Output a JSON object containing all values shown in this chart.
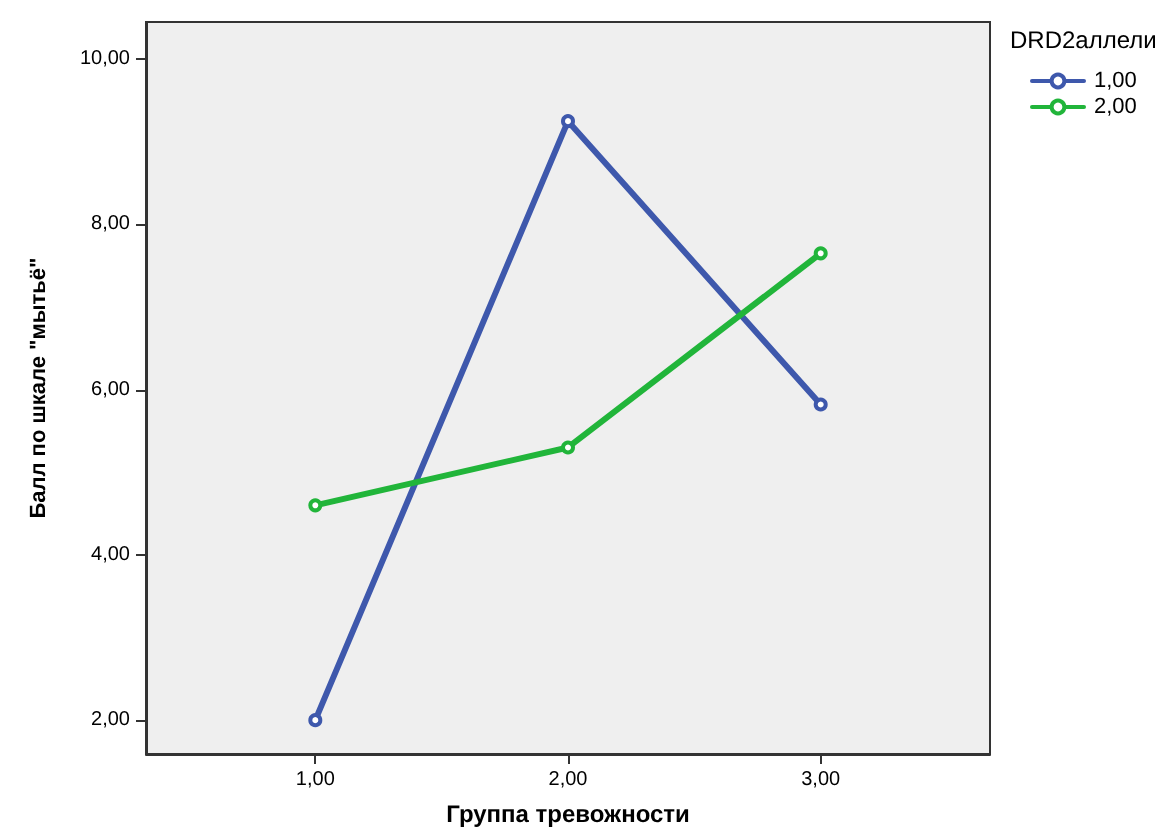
{
  "chart_data": {
    "type": "line",
    "xlabel": "Группа тревожности",
    "ylabel": "Балл по шкале \"мытьё\"",
    "legend_title": "DRD2аллели",
    "legend": "top right",
    "grid": false,
    "marker": "circle",
    "line_style": "solid",
    "x": [
      1,
      2,
      3
    ],
    "series": [
      {
        "name": "1,00",
        "color": "#3e58ac",
        "values": [
          2.0,
          9.25,
          5.82
        ]
      },
      {
        "name": "2,00",
        "color": "#21b53a",
        "values": [
          4.6,
          5.3,
          7.65
        ]
      }
    ],
    "xlim": [
      0.33,
      3.67
    ],
    "xticks": [
      {
        "value": 1,
        "label": "1,00"
      },
      {
        "value": 2,
        "label": "2,00"
      },
      {
        "value": 3,
        "label": "3,00"
      }
    ],
    "ylim": [
      1.59,
      10.45
    ],
    "yticks": [
      {
        "value": 2,
        "label": "2,00"
      },
      {
        "value": 4,
        "label": "4,00"
      },
      {
        "value": 6,
        "label": "6,00"
      },
      {
        "value": 8,
        "label": "8,00"
      },
      {
        "value": 10,
        "label": "10,00"
      }
    ]
  }
}
